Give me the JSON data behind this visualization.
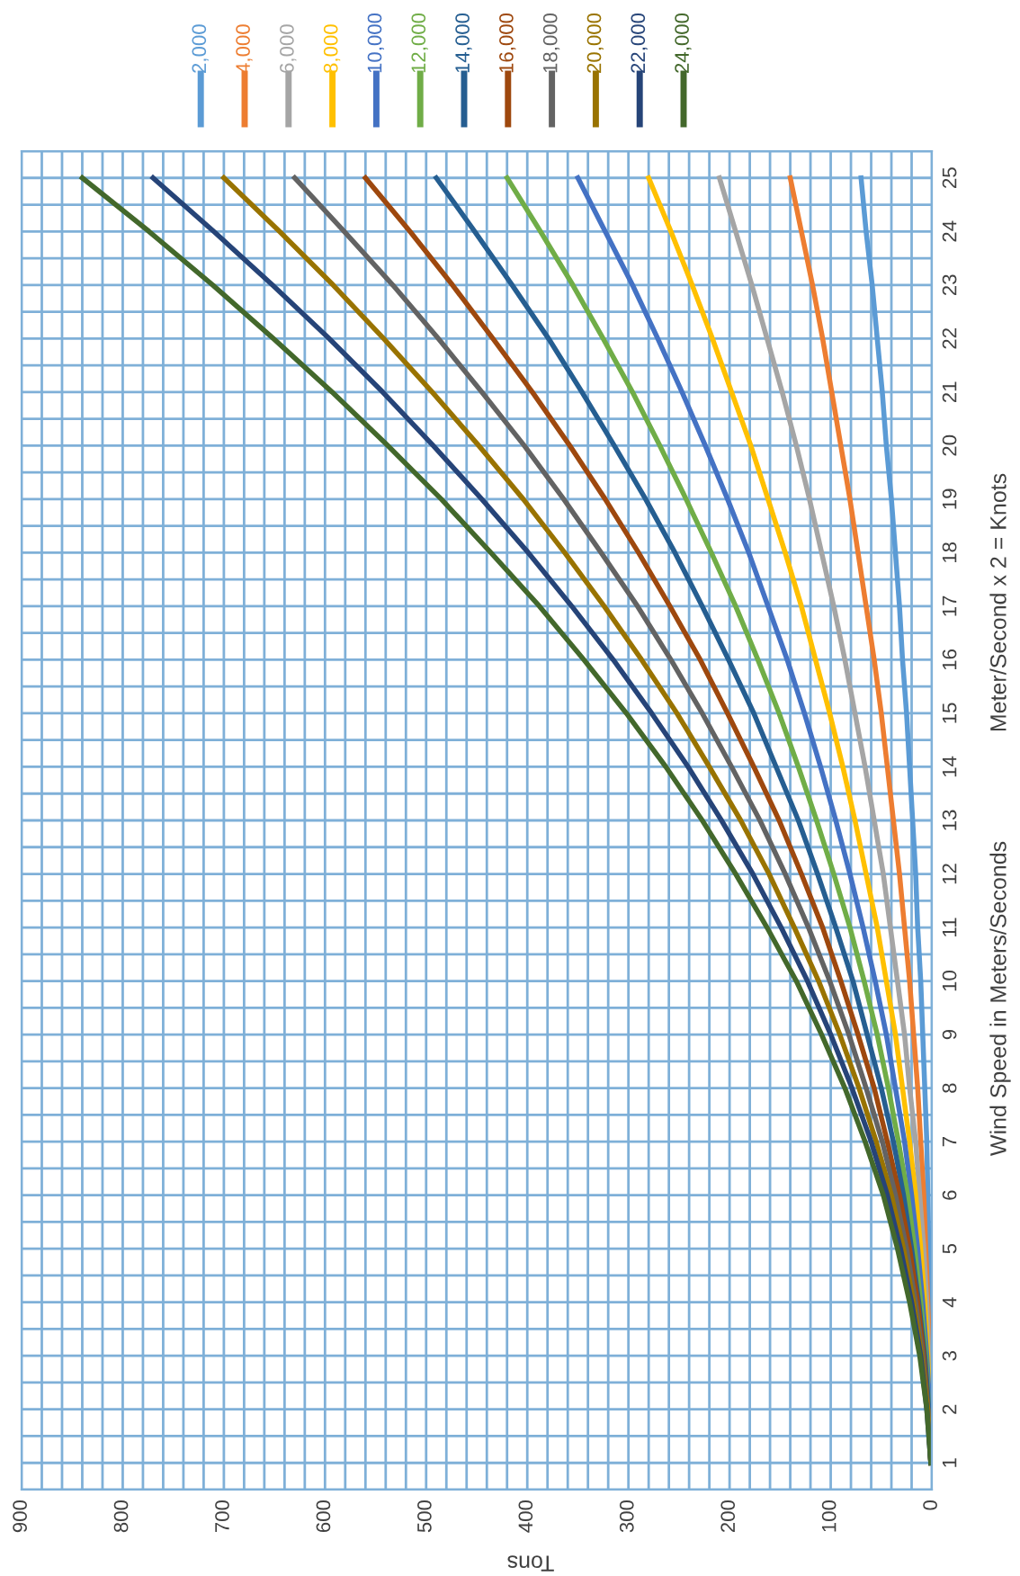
{
  "chart_data": {
    "type": "line",
    "orientation": "horizontal",
    "xlabel": "Tons",
    "ylabel": "Wind Speed in Meters/Seconds",
    "annotations": [
      "Meter/Second x 2 = Knots"
    ],
    "categories": [
      "25",
      "24",
      "23",
      "22",
      "21",
      "20",
      "19",
      "18",
      "17",
      "16",
      "15",
      "14",
      "13",
      "12",
      "11",
      "10",
      "9",
      "8",
      "7",
      "6",
      "5",
      "4",
      "3",
      "2",
      "1"
    ],
    "xlim": [
      900,
      0
    ],
    "xticks": [
      900,
      800,
      700,
      600,
      500,
      400,
      300,
      200,
      100,
      0
    ],
    "grid": true,
    "legend": "top",
    "marker": "none",
    "line_style": "solid",
    "series": [
      {
        "name": "2,000",
        "color": "#5b9bd5",
        "values": [
          70,
          65,
          59,
          54,
          49,
          45,
          40,
          36,
          32,
          29,
          25,
          22,
          19,
          16,
          14,
          11,
          9,
          7,
          5,
          4,
          3,
          2,
          1,
          0,
          0
        ]
      },
      {
        "name": "4,000",
        "color": "#ed7d31",
        "values": [
          140,
          129,
          118,
          108,
          99,
          90,
          81,
          73,
          65,
          57,
          50,
          44,
          38,
          32,
          27,
          22,
          18,
          14,
          11,
          8,
          6,
          4,
          2,
          1,
          0
        ]
      },
      {
        "name": "6,000",
        "color": "#a5a5a5",
        "values": [
          210,
          194,
          178,
          163,
          148,
          134,
          121,
          109,
          97,
          86,
          76,
          66,
          57,
          48,
          41,
          34,
          27,
          22,
          16,
          12,
          8,
          5,
          3,
          1,
          0
        ]
      },
      {
        "name": "8,000",
        "color": "#ffc000",
        "values": [
          280,
          258,
          237,
          217,
          198,
          179,
          162,
          145,
          129,
          115,
          101,
          88,
          76,
          65,
          54,
          45,
          36,
          29,
          22,
          16,
          11,
          7,
          4,
          2,
          0
        ]
      },
      {
        "name": "10,000",
        "color": "#4472c4",
        "values": [
          350,
          323,
          296,
          271,
          247,
          224,
          202,
          181,
          162,
          143,
          126,
          110,
          95,
          81,
          68,
          56,
          45,
          36,
          27,
          20,
          14,
          9,
          5,
          2,
          1
        ]
      },
      {
        "name": "12,000",
        "color": "#70ad47",
        "values": [
          420,
          387,
          355,
          325,
          296,
          269,
          243,
          218,
          194,
          172,
          151,
          132,
          114,
          97,
          81,
          67,
          54,
          43,
          33,
          24,
          17,
          11,
          6,
          3,
          1
        ]
      },
      {
        "name": "14,000",
        "color": "#255e91",
        "values": [
          490,
          452,
          415,
          379,
          346,
          314,
          283,
          254,
          227,
          201,
          176,
          154,
          132,
          113,
          95,
          78,
          64,
          50,
          38,
          28,
          20,
          13,
          7,
          3,
          1
        ]
      },
      {
        "name": "16,000",
        "color": "#9e480e",
        "values": [
          560,
          516,
          474,
          434,
          395,
          358,
          323,
          290,
          259,
          229,
          202,
          176,
          151,
          129,
          108,
          90,
          73,
          57,
          44,
          32,
          22,
          14,
          8,
          4,
          1
        ]
      },
      {
        "name": "18,000",
        "color": "#636363",
        "values": [
          630,
          581,
          533,
          488,
          445,
          403,
          364,
          327,
          291,
          258,
          227,
          198,
          170,
          145,
          122,
          101,
          82,
          65,
          49,
          36,
          25,
          16,
          9,
          4,
          1
        ]
      },
      {
        "name": "20,000",
        "color": "#997300",
        "values": [
          700,
          645,
          592,
          542,
          494,
          448,
          404,
          363,
          324,
          287,
          252,
          220,
          189,
          161,
          136,
          112,
          91,
          72,
          55,
          40,
          28,
          18,
          10,
          4,
          1
        ]
      },
      {
        "name": "22,000",
        "color": "#264478",
        "values": [
          770,
          710,
          652,
          596,
          543,
          493,
          445,
          399,
          356,
          315,
          277,
          241,
          208,
          177,
          149,
          123,
          100,
          79,
          60,
          44,
          31,
          20,
          11,
          5,
          1
        ]
      },
      {
        "name": "24,000",
        "color": "#43682b",
        "values": [
          840,
          774,
          711,
          651,
          593,
          538,
          485,
          436,
          388,
          344,
          302,
          263,
          227,
          194,
          163,
          134,
          109,
          86,
          66,
          48,
          34,
          22,
          12,
          5,
          1
        ]
      }
    ]
  }
}
